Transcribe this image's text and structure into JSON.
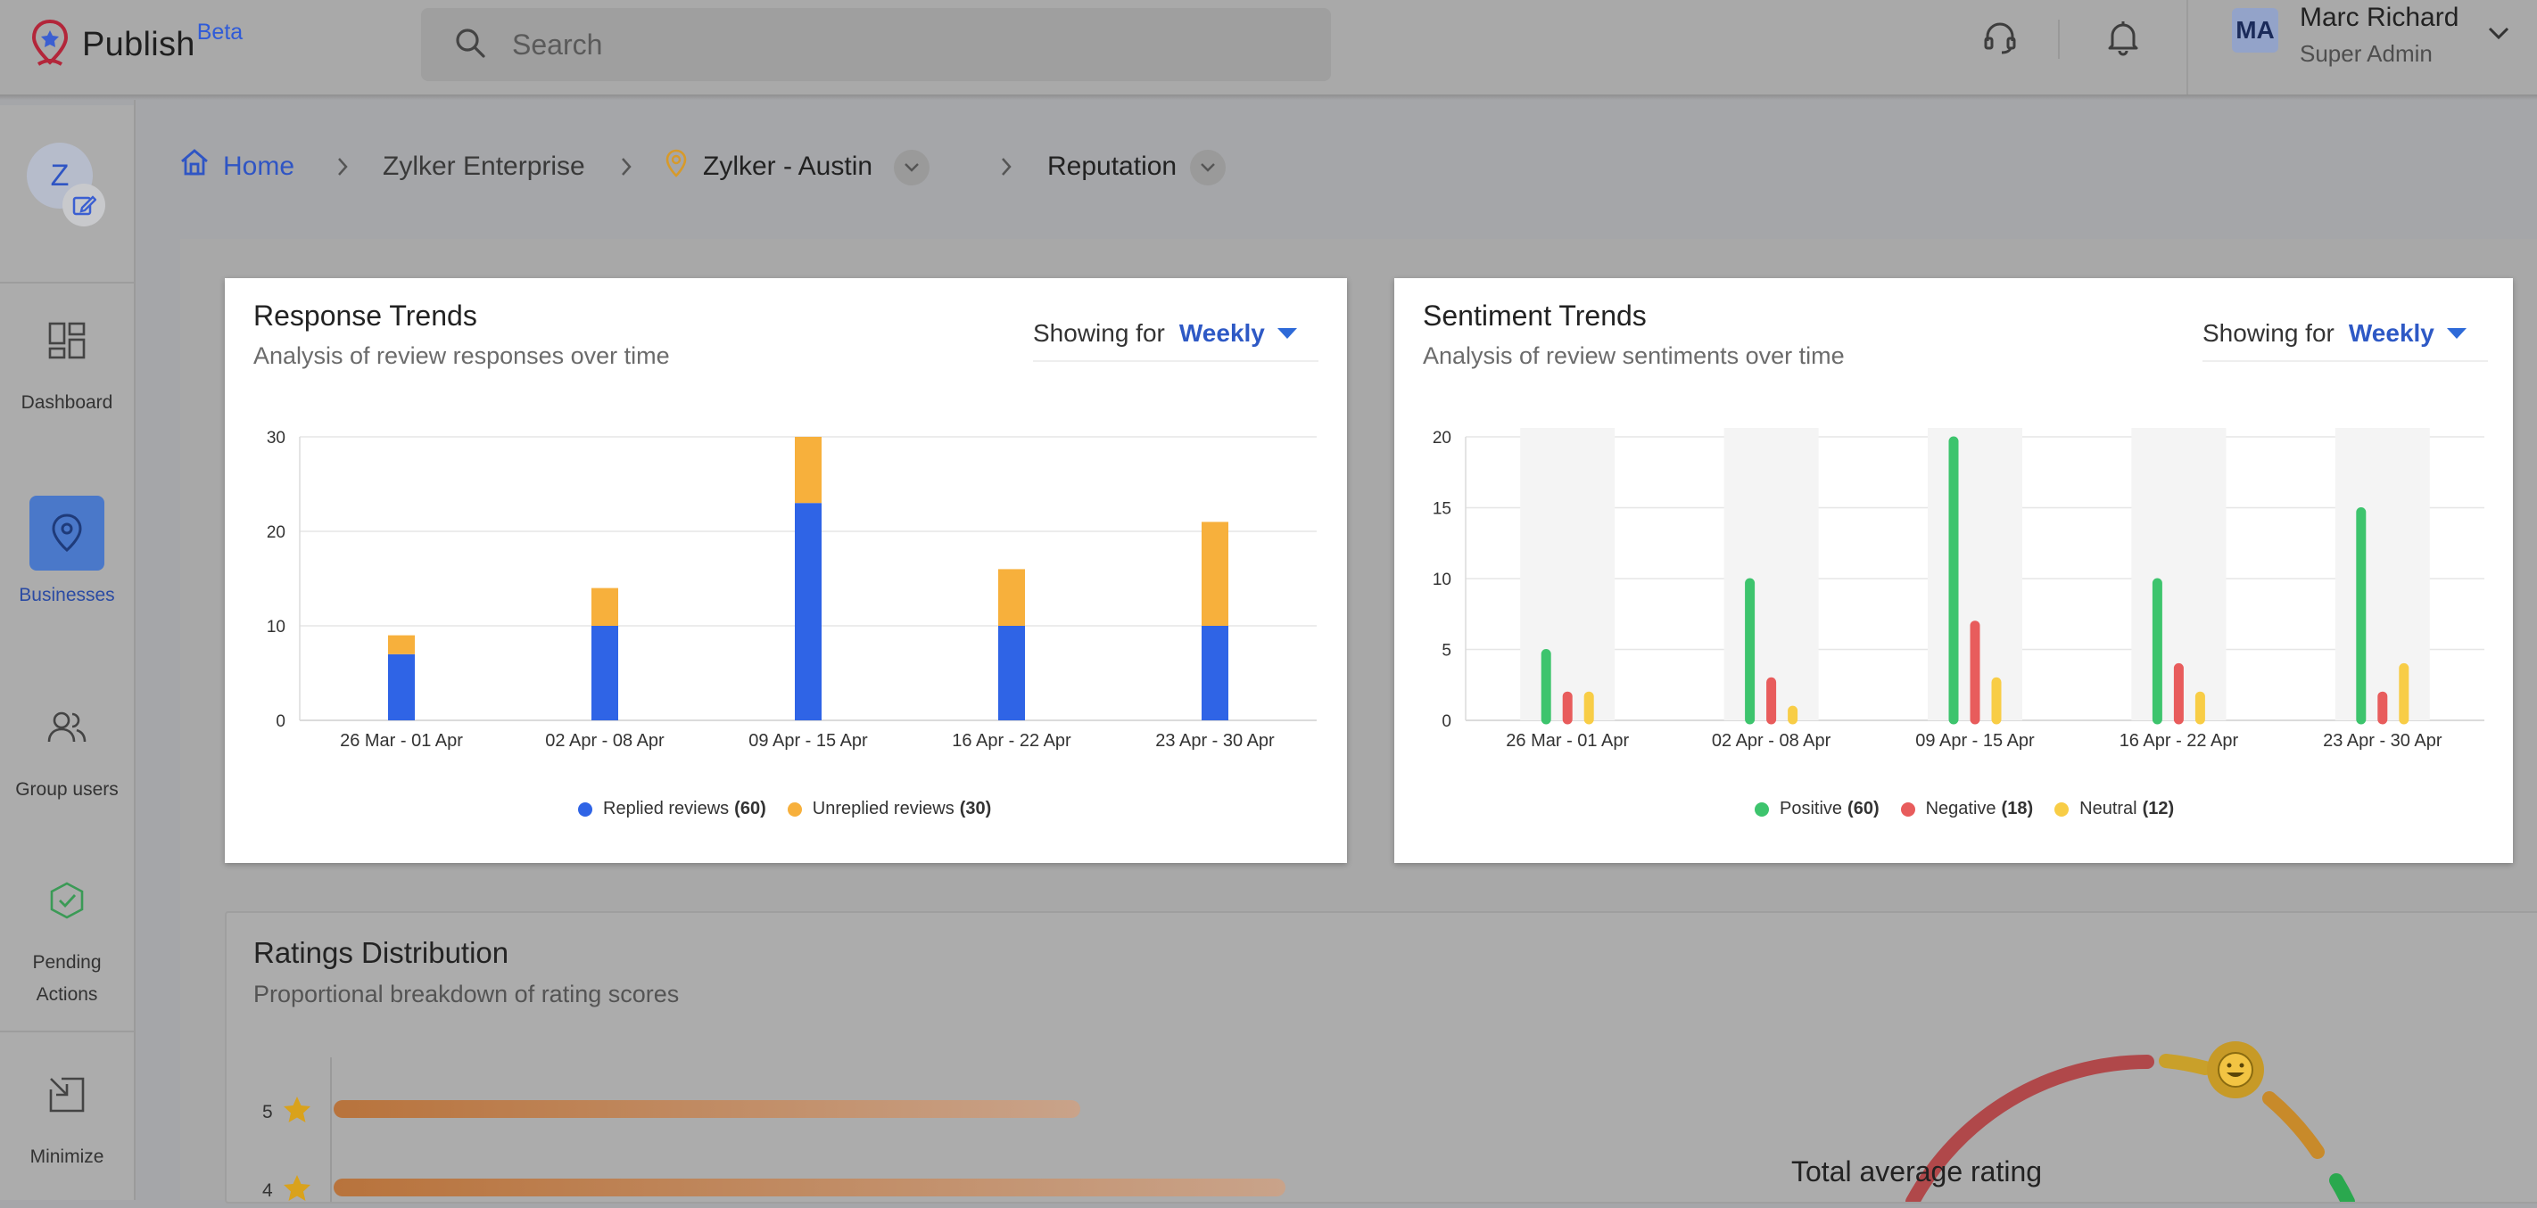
{
  "app": {
    "name": "Publish",
    "badge": "Beta"
  },
  "search": {
    "placeholder": "Search"
  },
  "user": {
    "initials": "MA",
    "name": "Marc Richard",
    "role": "Super Admin"
  },
  "org": {
    "initial": "Z"
  },
  "sidebar": {
    "items": [
      {
        "label": "Dashboard",
        "icon": "dashboard-icon",
        "active": false
      },
      {
        "label": "Businesses",
        "icon": "location-pin-icon",
        "active": true
      },
      {
        "label": "Group users",
        "icon": "users-icon",
        "active": false
      },
      {
        "label": "Pending Actions",
        "icon": "shield-check-icon",
        "active": false
      },
      {
        "label": "Minimize",
        "icon": "minimize-icon",
        "active": false
      }
    ]
  },
  "breadcrumb": {
    "home": "Home",
    "enterprise": "Zylker Enterprise",
    "location": "Zylker - Austin",
    "section": "Reputation"
  },
  "response_trends": {
    "title": "Response Trends",
    "subtitle": "Analysis of review responses over time",
    "showing_label": "Showing for",
    "period": "Weekly",
    "legend": [
      {
        "label": "Replied reviews",
        "count": "(60)",
        "color": "#2f64e6"
      },
      {
        "label": "Unreplied reviews",
        "count": "(30)",
        "color": "#f7b03c"
      }
    ]
  },
  "sentiment_trends": {
    "title": "Sentiment Trends",
    "subtitle": "Analysis of review sentiments over time",
    "showing_label": "Showing for",
    "period": "Weekly",
    "legend": [
      {
        "label": "Positive",
        "count": "(60)",
        "color": "#3dc46d"
      },
      {
        "label": "Negative",
        "count": "(18)",
        "color": "#e85c5c"
      },
      {
        "label": "Neutral",
        "count": "(12)",
        "color": "#f8cd46"
      }
    ]
  },
  "ratings_distribution": {
    "title": "Ratings Distribution",
    "subtitle": "Proportional breakdown of rating scores",
    "rows": [
      {
        "stars": "5",
        "fraction": 0.4
      },
      {
        "stars": "4",
        "fraction": 0.51
      }
    ],
    "gauge_label": "Total average rating"
  },
  "chart_data": [
    {
      "type": "bar",
      "title": "Response Trends",
      "stacked": true,
      "categories": [
        "26 Mar - 01 Apr",
        "02 Apr - 08 Apr",
        "09 Apr - 15 Apr",
        "16 Apr - 22 Apr",
        "23 Apr - 30 Apr"
      ],
      "series": [
        {
          "name": "Replied reviews",
          "values": [
            7,
            10,
            23,
            10,
            10
          ],
          "color": "#2f64e6"
        },
        {
          "name": "Unreplied reviews",
          "values": [
            2,
            4,
            7,
            6,
            11
          ],
          "color": "#f7b03c"
        }
      ],
      "ylim": [
        0,
        30
      ],
      "yticks": [
        0,
        10,
        20,
        30
      ],
      "grid": true,
      "legend": "bottom"
    },
    {
      "type": "bar",
      "title": "Sentiment Trends",
      "stacked": false,
      "categories": [
        "26 Mar - 01 Apr",
        "02 Apr - 08 Apr",
        "09 Apr - 15 Apr",
        "16 Apr - 22 Apr",
        "23 Apr - 30 Apr"
      ],
      "series": [
        {
          "name": "Positive",
          "values": [
            5,
            10,
            20,
            10,
            15
          ],
          "color": "#3dc46d"
        },
        {
          "name": "Negative",
          "values": [
            2,
            3,
            7,
            4,
            2
          ],
          "color": "#e85c5c"
        },
        {
          "name": "Neutral",
          "values": [
            2,
            1,
            3,
            2,
            4
          ],
          "color": "#f8cd46"
        }
      ],
      "ylim": [
        0,
        20
      ],
      "yticks": [
        0,
        5,
        10,
        15,
        20
      ],
      "grid": true,
      "legend": "bottom"
    }
  ]
}
